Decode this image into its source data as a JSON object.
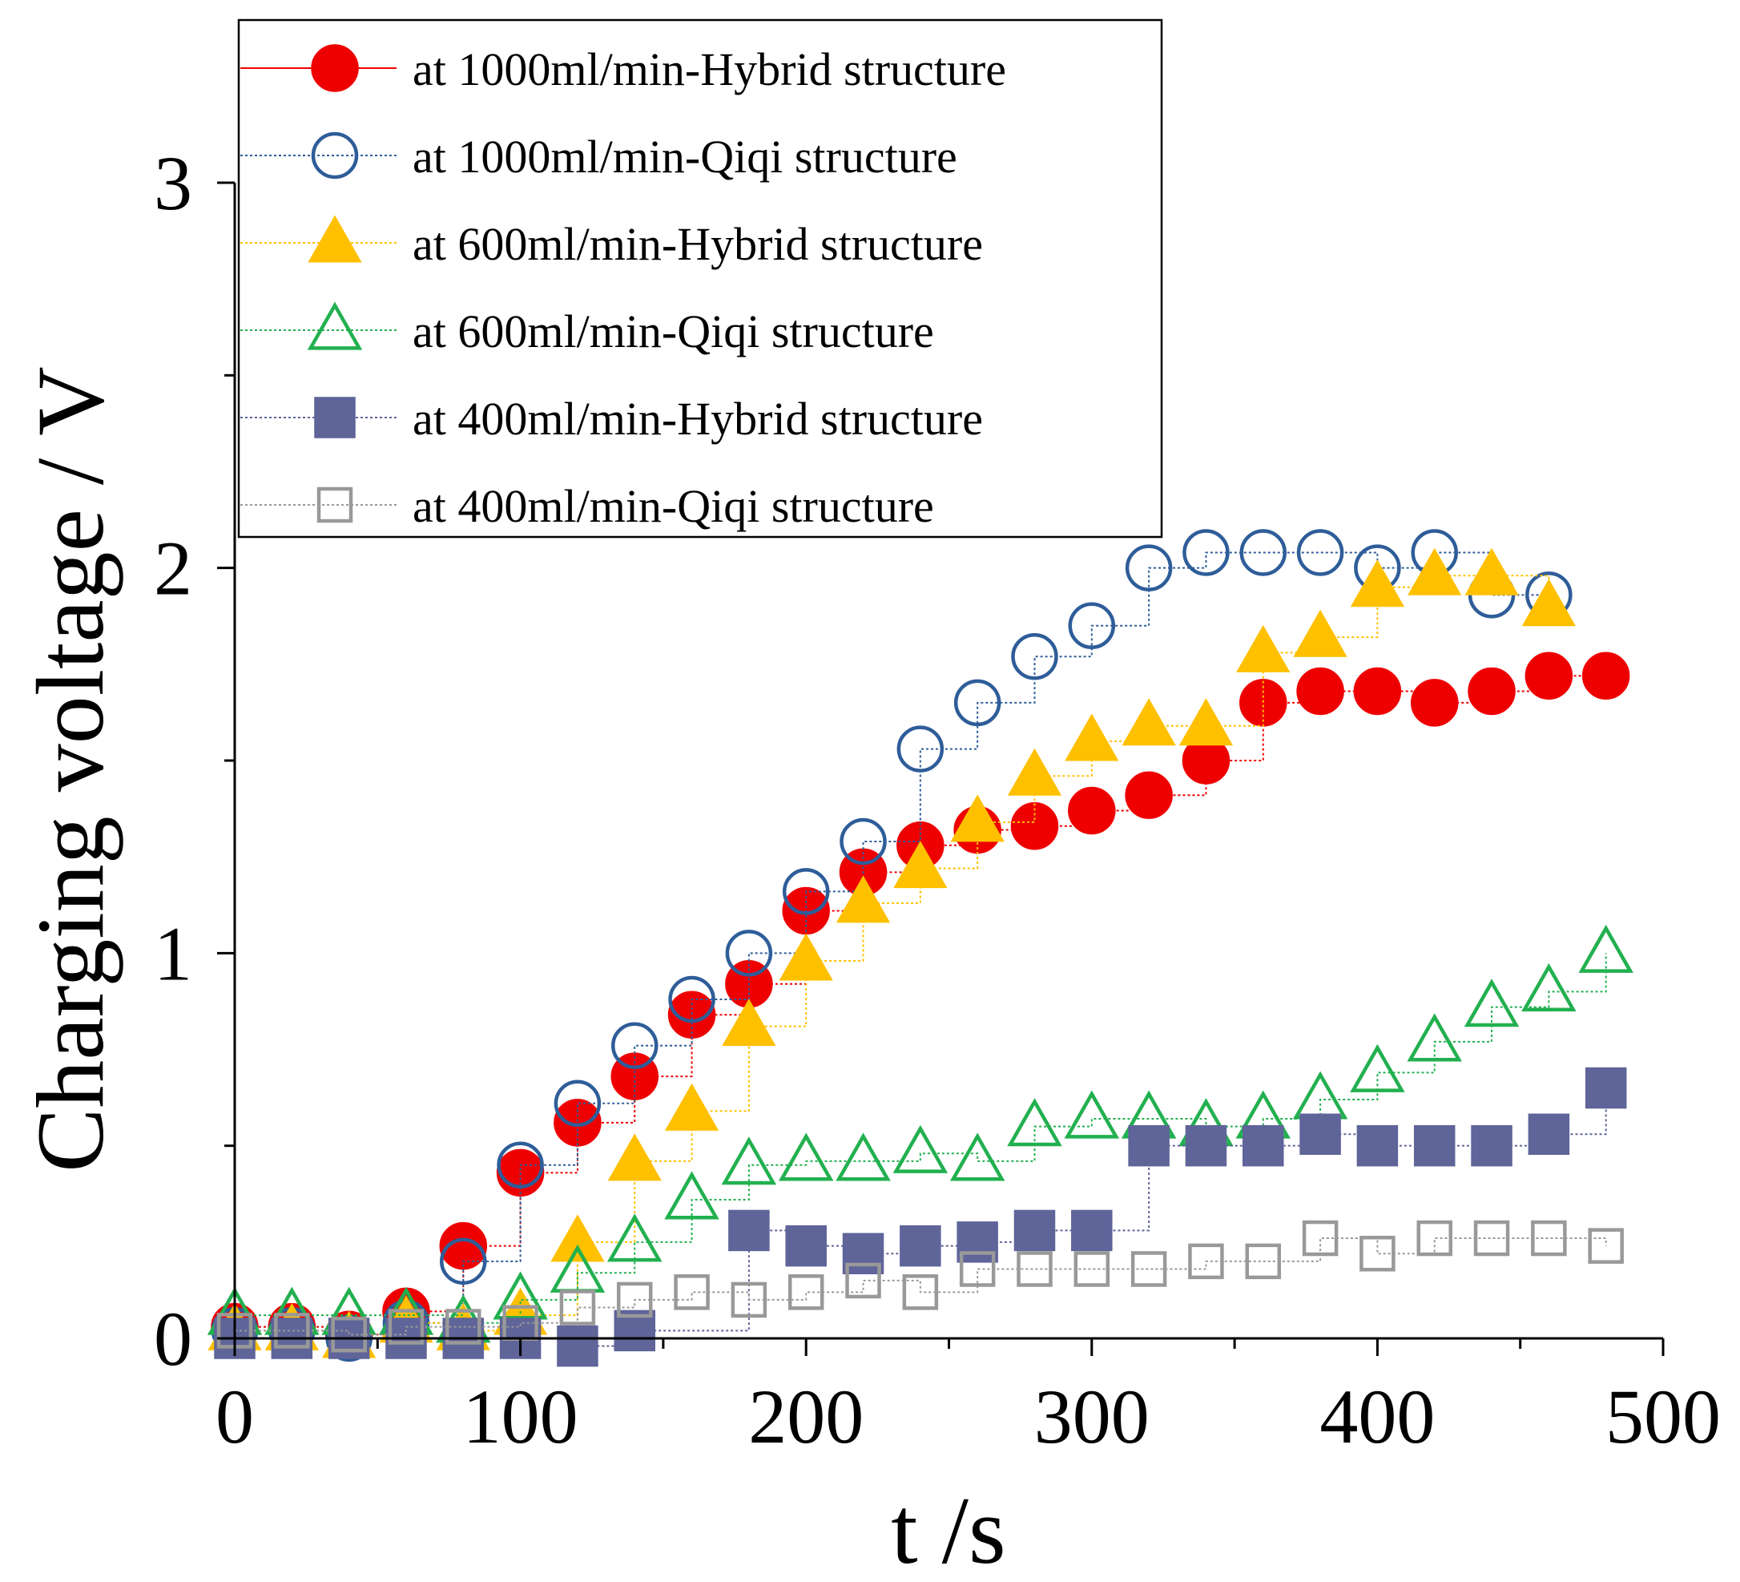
{
  "chart_data": {
    "type": "scatter",
    "xlabel": "t /s",
    "ylabel": "Charging  voltage / V",
    "xlim": [
      0,
      500
    ],
    "ylim": [
      0,
      3
    ],
    "x_ticks": [
      "0",
      "100",
      "200",
      "300",
      "400",
      "500"
    ],
    "y_ticks": [
      "0",
      "1",
      "2",
      "3"
    ],
    "grid": false,
    "legend_position": "top-center",
    "x": [
      0,
      20,
      40,
      60,
      80,
      100,
      120,
      140,
      160,
      180,
      200,
      220,
      240,
      260,
      280,
      300,
      320,
      340,
      360,
      380,
      400,
      420,
      440,
      460,
      480
    ],
    "series": [
      {
        "name": "at 1000ml/min-Hybrid structure",
        "color": "#ee0000",
        "marker": "filled-circle",
        "values": [
          0.03,
          0.03,
          0.01,
          0.07,
          0.24,
          0.43,
          0.56,
          0.68,
          0.84,
          0.92,
          1.11,
          1.21,
          1.28,
          1.32,
          1.33,
          1.37,
          1.41,
          1.5,
          1.65,
          1.68,
          1.68,
          1.65,
          1.68,
          1.72,
          1.72
        ]
      },
      {
        "name": "at 1000ml/min-Qiqi structure",
        "color": "#2e5d99",
        "marker": "open-circle",
        "values": [
          0.02,
          0.02,
          0.0,
          0.04,
          0.2,
          0.45,
          0.61,
          0.76,
          0.88,
          1.0,
          1.16,
          1.29,
          1.53,
          1.65,
          1.77,
          1.85,
          2.0,
          2.04,
          2.04,
          2.04,
          2.0,
          2.04,
          1.93,
          1.93,
          null
        ]
      },
      {
        "name": "at 600ml/min-Hybrid structure",
        "color": "#ffc000",
        "marker": "filled-triangle",
        "values": [
          0.02,
          0.02,
          0.0,
          0.04,
          0.02,
          0.06,
          0.25,
          0.46,
          0.59,
          0.81,
          0.98,
          1.13,
          1.22,
          1.34,
          1.46,
          1.55,
          1.59,
          1.59,
          1.78,
          1.82,
          1.95,
          1.98,
          1.98,
          1.9,
          null
        ]
      },
      {
        "name": "at 600ml/min-Qiqi structure",
        "color": "#22b04f",
        "marker": "open-triangle",
        "values": [
          0.06,
          0.06,
          0.06,
          0.06,
          0.04,
          0.1,
          0.17,
          0.25,
          0.36,
          0.45,
          0.46,
          0.46,
          0.48,
          0.46,
          0.55,
          0.57,
          0.57,
          0.55,
          0.57,
          0.62,
          0.69,
          0.77,
          0.86,
          0.9,
          1.0
        ]
      },
      {
        "name": "at 400ml/min-Hybrid structure",
        "color": "#5f6499",
        "marker": "filled-square",
        "values": [
          0.0,
          0.0,
          0.0,
          0.0,
          0.0,
          0.0,
          -0.02,
          0.02,
          null,
          0.28,
          0.24,
          0.22,
          0.24,
          0.25,
          0.28,
          0.28,
          0.5,
          0.5,
          0.5,
          0.53,
          0.5,
          0.5,
          0.5,
          0.53,
          0.65
        ]
      },
      {
        "name": "at 400ml/min-Qiqi structure",
        "color": "#999999",
        "marker": "open-square",
        "values": [
          0.02,
          0.02,
          0.01,
          0.03,
          0.03,
          0.04,
          0.08,
          0.1,
          0.12,
          0.1,
          0.12,
          0.15,
          0.12,
          0.18,
          0.18,
          0.18,
          0.18,
          0.2,
          0.2,
          0.26,
          0.22,
          0.26,
          0.26,
          0.26,
          0.24
        ]
      }
    ]
  }
}
